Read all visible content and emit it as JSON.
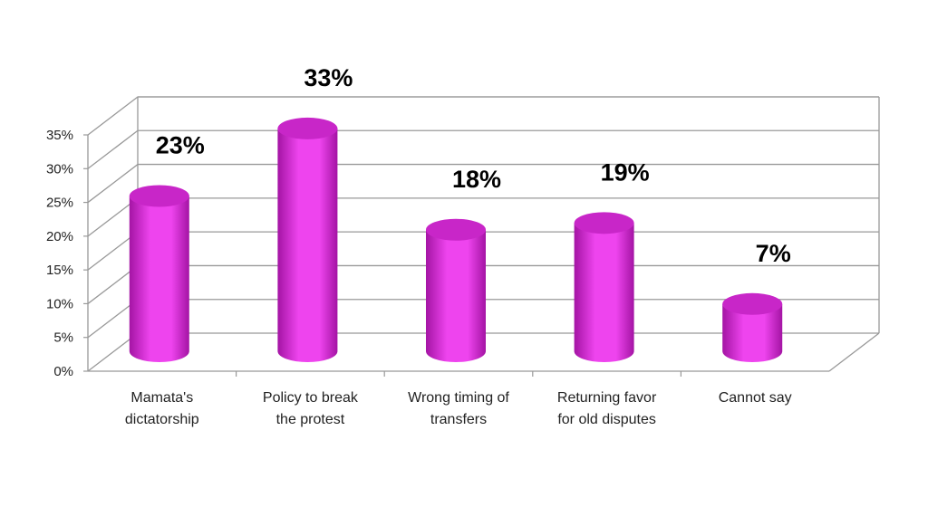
{
  "chart_data": {
    "type": "bar",
    "categories": [
      [
        "Mamata's",
        "dictatorship"
      ],
      [
        "Policy to break",
        "the protest"
      ],
      [
        "Wrong timing of",
        "transfers"
      ],
      [
        "Returning favor",
        "for old disputes"
      ],
      [
        "Cannot say"
      ]
    ],
    "values": [
      23,
      33,
      18,
      19,
      7
    ],
    "data_labels": [
      "23%",
      "33%",
      "18%",
      "19%",
      "7%"
    ],
    "y_ticks": [
      "0%",
      "5%",
      "10%",
      "15%",
      "20%",
      "25%",
      "30%",
      "35%"
    ],
    "ylim": [
      0,
      35
    ],
    "grid": true,
    "style": "3d-cylinder",
    "colors": {
      "bar": "#ee44ee",
      "bar_dark": "#a414a4",
      "bar_top": "#c826c8",
      "grid": "#999999"
    }
  }
}
